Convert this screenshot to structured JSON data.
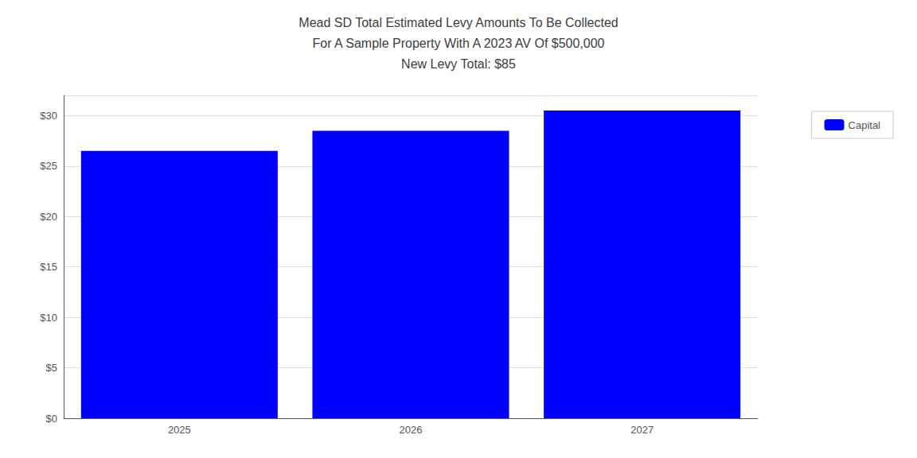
{
  "chart_data": {
    "type": "bar",
    "title": [
      "Mead SD Total Estimated Levy Amounts To Be Collected",
      "For A Sample Property With A 2023 AV Of $500,000",
      "New Levy Total: $85"
    ],
    "categories": [
      "2025",
      "2026",
      "2027"
    ],
    "series": [
      {
        "name": "Capital",
        "color": "#0000FF",
        "values": [
          26.5,
          28.5,
          30.5
        ]
      }
    ],
    "ylim": [
      0,
      32
    ],
    "yticks": [
      {
        "value": 0,
        "label": "$0"
      },
      {
        "value": 5,
        "label": "$5"
      },
      {
        "value": 10,
        "label": "$10"
      },
      {
        "value": 15,
        "label": "$15"
      },
      {
        "value": 20,
        "label": "$20"
      },
      {
        "value": 25,
        "label": "$25"
      },
      {
        "value": 30,
        "label": "$30"
      }
    ],
    "grid": true,
    "legend": "right"
  }
}
